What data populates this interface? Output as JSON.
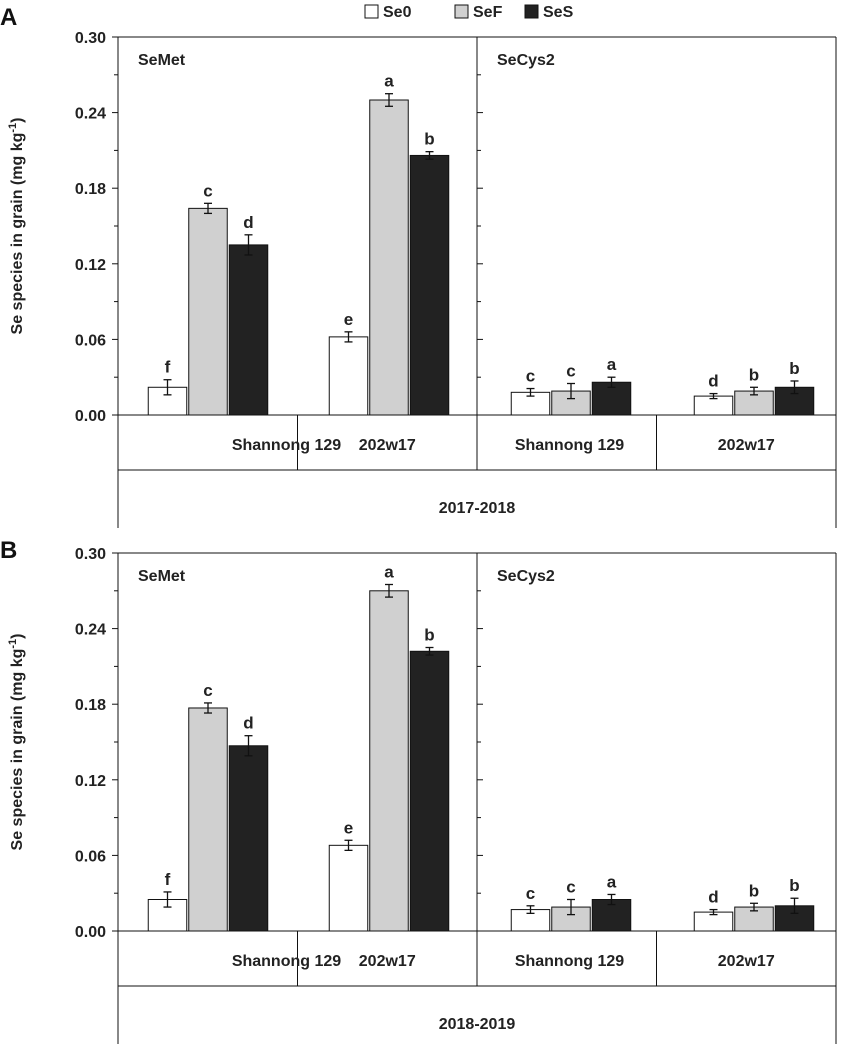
{
  "legend": {
    "items": [
      {
        "label": "Se0",
        "color": "#ffffff"
      },
      {
        "label": "SeF",
        "color": "#d0d0d0"
      },
      {
        "label": "SeS",
        "color": "#222222"
      }
    ]
  },
  "colors": {
    "Se0": "#ffffff",
    "SeF": "#d0d0d0",
    "SeS": "#222222",
    "stroke": "#111111"
  },
  "chart_data": [
    {
      "type": "bar",
      "panel_letter": "A",
      "ylabel": "Se species in grain (mg kg",
      "ylabel_sup": "-1",
      "ylabel_end": ")",
      "ylim": [
        0,
        0.3
      ],
      "yticks": [
        "0.00",
        "0.06",
        "0.12",
        "0.18",
        "0.24",
        "0.30"
      ],
      "year": "2017-2018",
      "groups": [
        {
          "name": "SeMet",
          "categories": [
            "Shannong 129",
            "202w17"
          ],
          "series": [
            {
              "name": "Se0",
              "values": [
                0.022,
                0.062
              ],
              "errors": [
                0.006,
                0.004
              ],
              "letters": [
                "f",
                "e"
              ]
            },
            {
              "name": "SeF",
              "values": [
                0.164,
                0.25
              ],
              "errors": [
                0.004,
                0.005
              ],
              "letters": [
                "c",
                "a"
              ]
            },
            {
              "name": "SeS",
              "values": [
                0.135,
                0.206
              ],
              "errors": [
                0.008,
                0.003
              ],
              "letters": [
                "d",
                "b"
              ]
            }
          ]
        },
        {
          "name": "SeCys2",
          "categories": [
            "Shannong 129",
            "202w17"
          ],
          "series": [
            {
              "name": "Se0",
              "values": [
                0.018,
                0.015
              ],
              "errors": [
                0.003,
                0.002
              ],
              "letters": [
                "c",
                "d"
              ]
            },
            {
              "name": "SeF",
              "values": [
                0.019,
                0.019
              ],
              "errors": [
                0.006,
                0.003
              ],
              "letters": [
                "c",
                "b"
              ]
            },
            {
              "name": "SeS",
              "values": [
                0.026,
                0.022
              ],
              "errors": [
                0.004,
                0.005
              ],
              "letters": [
                "a",
                "b"
              ]
            }
          ]
        }
      ]
    },
    {
      "type": "bar",
      "panel_letter": "B",
      "ylabel": "Se species in grain (mg kg",
      "ylabel_sup": "-1",
      "ylabel_end": ")",
      "ylim": [
        0,
        0.3
      ],
      "yticks": [
        "0.00",
        "0.06",
        "0.12",
        "0.18",
        "0.24",
        "0.30"
      ],
      "year": "2018-2019",
      "groups": [
        {
          "name": "SeMet",
          "categories": [
            "Shannong 129",
            "202w17"
          ],
          "series": [
            {
              "name": "Se0",
              "values": [
                0.025,
                0.068
              ],
              "errors": [
                0.006,
                0.004
              ],
              "letters": [
                "f",
                "e"
              ]
            },
            {
              "name": "SeF",
              "values": [
                0.177,
                0.27
              ],
              "errors": [
                0.004,
                0.005
              ],
              "letters": [
                "c",
                "a"
              ]
            },
            {
              "name": "SeS",
              "values": [
                0.147,
                0.222
              ],
              "errors": [
                0.008,
                0.003
              ],
              "letters": [
                "d",
                "b"
              ]
            }
          ]
        },
        {
          "name": "SeCys2",
          "categories": [
            "Shannong 129",
            "202w17"
          ],
          "series": [
            {
              "name": "Se0",
              "values": [
                0.017,
                0.015
              ],
              "errors": [
                0.003,
                0.002
              ],
              "letters": [
                "c",
                "d"
              ]
            },
            {
              "name": "SeF",
              "values": [
                0.019,
                0.019
              ],
              "errors": [
                0.006,
                0.003
              ],
              "letters": [
                "c",
                "b"
              ]
            },
            {
              "name": "SeS",
              "values": [
                0.025,
                0.02
              ],
              "errors": [
                0.004,
                0.006
              ],
              "letters": [
                "a",
                "b"
              ]
            }
          ]
        }
      ]
    }
  ]
}
